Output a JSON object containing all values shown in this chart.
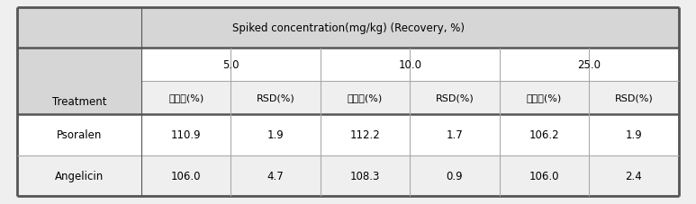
{
  "header_top": "Spiked concentration(mg/kg) (Recovery, %)",
  "header_mid": [
    "5.0",
    "10.0",
    "25.0"
  ],
  "header_bot": [
    "회수율(%)",
    "RSD(%)",
    "회수율(%)",
    "RSD(%)",
    "회수율(%)",
    "RSD(%)"
  ],
  "col0_label": "Treatment",
  "rows": [
    [
      "Psoralen",
      "110.9",
      "1.9",
      "112.2",
      "1.7",
      "106.2",
      "1.9"
    ],
    [
      "Angelicin",
      "106.0",
      "4.7",
      "108.3",
      "0.9",
      "106.0",
      "2.4"
    ]
  ],
  "bg_header": "#d6d6d6",
  "bg_white": "#ffffff",
  "bg_light": "#efefef",
  "border_thick": "#555555",
  "border_thin": "#aaaaaa",
  "font_size": 8.5,
  "fig_width": 7.73,
  "fig_height": 2.28,
  "dpi": 100
}
